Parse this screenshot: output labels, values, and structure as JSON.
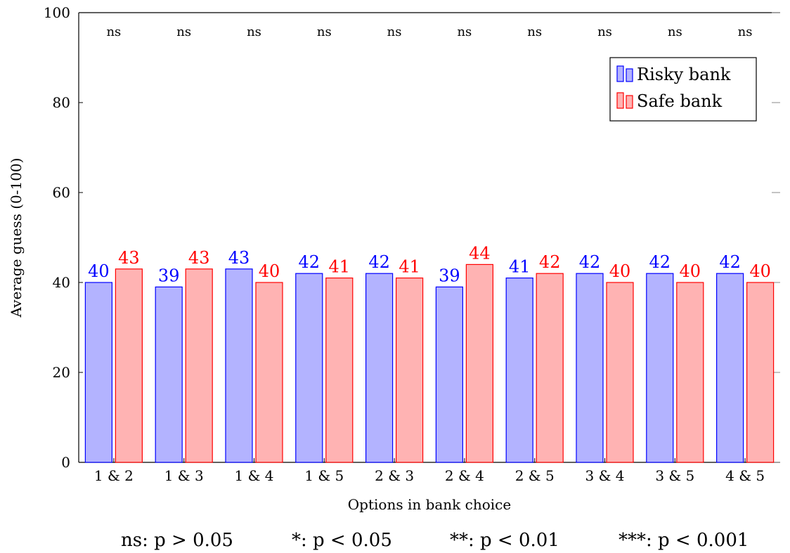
{
  "chart_data": {
    "type": "bar",
    "ylabel": "Average guess (0-100)",
    "xlabel": "Options in bank choice",
    "ylim": [
      0,
      100
    ],
    "yticks": [
      0,
      20,
      40,
      60,
      80,
      100
    ],
    "grid": false,
    "legend_position": "top-right",
    "categories": [
      "1 & 2",
      "1 & 3",
      "1 & 4",
      "1 & 5",
      "2 & 3",
      "2 & 4",
      "2 & 5",
      "3 & 4",
      "3 & 5",
      "4 & 5"
    ],
    "series": [
      {
        "name": "Risky bank",
        "values": [
          40,
          39,
          43,
          42,
          42,
          39,
          41,
          42,
          42,
          42
        ],
        "color": "#0000ff",
        "fill": "#b3b3ff"
      },
      {
        "name": "Safe bank",
        "values": [
          43,
          43,
          40,
          41,
          41,
          44,
          42,
          40,
          40,
          40
        ],
        "color": "#ff0000",
        "fill": "#ffb3b3"
      }
    ],
    "significance": [
      "ns",
      "ns",
      "ns",
      "ns",
      "ns",
      "ns",
      "ns",
      "ns",
      "ns",
      "ns"
    ],
    "footnote": [
      "ns: p > 0.05",
      "*: p < 0.05",
      "**: p < 0.01",
      "***: p < 0.001"
    ]
  }
}
